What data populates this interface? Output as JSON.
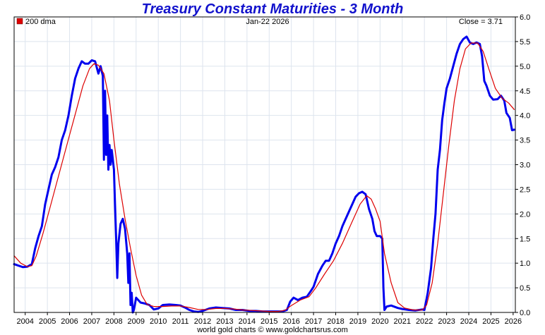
{
  "chart_data": {
    "type": "line",
    "title": "Treasury Constant Maturities - 3 Month",
    "date_label": "Jan-22  2026",
    "close_label": "Close = 3.71",
    "footer": "world gold charts © www.goldchartsrus.com",
    "xlim": [
      2003.5,
      2026.1
    ],
    "ylim": [
      0.0,
      6.0
    ],
    "x_ticks": [
      "2004",
      "2005",
      "2006",
      "2007",
      "2008",
      "2009",
      "2010",
      "2011",
      "2012",
      "2013",
      "2014",
      "2015",
      "2016",
      "2017",
      "2018",
      "2019",
      "2020",
      "2021",
      "2022",
      "2023",
      "2024",
      "2025",
      "2026"
    ],
    "y_ticks": [
      "0.0",
      "0.5",
      "1.0",
      "1.5",
      "2.0",
      "2.5",
      "3.0",
      "3.5",
      "4.0",
      "4.5",
      "5.0",
      "5.5",
      "6.0"
    ],
    "grid": true,
    "legend_position": "top-left",
    "series": [
      {
        "name": "",
        "color": "#0000ee",
        "points": [
          [
            2003.5,
            0.98
          ],
          [
            2003.7,
            0.95
          ],
          [
            2003.9,
            0.92
          ],
          [
            2004.1,
            0.93
          ],
          [
            2004.3,
            0.98
          ],
          [
            2004.45,
            1.3
          ],
          [
            2004.6,
            1.55
          ],
          [
            2004.75,
            1.75
          ],
          [
            2004.9,
            2.2
          ],
          [
            2005.05,
            2.5
          ],
          [
            2005.2,
            2.8
          ],
          [
            2005.35,
            2.95
          ],
          [
            2005.5,
            3.15
          ],
          [
            2005.65,
            3.5
          ],
          [
            2005.8,
            3.7
          ],
          [
            2005.95,
            4.0
          ],
          [
            2006.1,
            4.4
          ],
          [
            2006.25,
            4.75
          ],
          [
            2006.4,
            4.95
          ],
          [
            2006.55,
            5.1
          ],
          [
            2006.7,
            5.05
          ],
          [
            2006.85,
            5.05
          ],
          [
            2007.0,
            5.12
          ],
          [
            2007.15,
            5.1
          ],
          [
            2007.3,
            4.85
          ],
          [
            2007.4,
            5.0
          ],
          [
            2007.5,
            4.8
          ],
          [
            2007.55,
            3.1
          ],
          [
            2007.6,
            4.5
          ],
          [
            2007.65,
            3.2
          ],
          [
            2007.7,
            4.0
          ],
          [
            2007.75,
            2.9
          ],
          [
            2007.8,
            3.4
          ],
          [
            2007.85,
            3.0
          ],
          [
            2007.9,
            3.3
          ],
          [
            2008.0,
            2.9
          ],
          [
            2008.05,
            2.2
          ],
          [
            2008.1,
            1.5
          ],
          [
            2008.15,
            0.7
          ],
          [
            2008.2,
            1.4
          ],
          [
            2008.3,
            1.8
          ],
          [
            2008.4,
            1.9
          ],
          [
            2008.5,
            1.7
          ],
          [
            2008.6,
            1.2
          ],
          [
            2008.65,
            0.6
          ],
          [
            2008.7,
            1.2
          ],
          [
            2008.75,
            0.15
          ],
          [
            2008.8,
            0.4
          ],
          [
            2008.85,
            0.0
          ],
          [
            2008.9,
            0.05
          ],
          [
            2009.0,
            0.3
          ],
          [
            2009.2,
            0.2
          ],
          [
            2009.4,
            0.18
          ],
          [
            2009.6,
            0.15
          ],
          [
            2009.8,
            0.06
          ],
          [
            2010.0,
            0.08
          ],
          [
            2010.2,
            0.15
          ],
          [
            2010.5,
            0.16
          ],
          [
            2010.8,
            0.15
          ],
          [
            2011.0,
            0.14
          ],
          [
            2011.2,
            0.1
          ],
          [
            2011.4,
            0.05
          ],
          [
            2011.6,
            0.02
          ],
          [
            2011.8,
            0.01
          ],
          [
            2012.0,
            0.03
          ],
          [
            2012.3,
            0.08
          ],
          [
            2012.6,
            0.1
          ],
          [
            2012.9,
            0.09
          ],
          [
            2013.2,
            0.08
          ],
          [
            2013.5,
            0.05
          ],
          [
            2013.8,
            0.05
          ],
          [
            2014.1,
            0.03
          ],
          [
            2014.4,
            0.03
          ],
          [
            2014.7,
            0.02
          ],
          [
            2015.0,
            0.02
          ],
          [
            2015.3,
            0.02
          ],
          [
            2015.6,
            0.02
          ],
          [
            2015.8,
            0.05
          ],
          [
            2015.95,
            0.22
          ],
          [
            2016.1,
            0.3
          ],
          [
            2016.3,
            0.25
          ],
          [
            2016.5,
            0.3
          ],
          [
            2016.7,
            0.32
          ],
          [
            2016.9,
            0.45
          ],
          [
            2017.0,
            0.52
          ],
          [
            2017.2,
            0.78
          ],
          [
            2017.4,
            0.95
          ],
          [
            2017.55,
            1.05
          ],
          [
            2017.7,
            1.05
          ],
          [
            2017.85,
            1.2
          ],
          [
            2018.0,
            1.4
          ],
          [
            2018.15,
            1.55
          ],
          [
            2018.3,
            1.75
          ],
          [
            2018.45,
            1.9
          ],
          [
            2018.6,
            2.05
          ],
          [
            2018.75,
            2.2
          ],
          [
            2018.9,
            2.35
          ],
          [
            2019.05,
            2.42
          ],
          [
            2019.2,
            2.45
          ],
          [
            2019.35,
            2.4
          ],
          [
            2019.5,
            2.1
          ],
          [
            2019.65,
            1.9
          ],
          [
            2019.75,
            1.65
          ],
          [
            2019.85,
            1.55
          ],
          [
            2020.0,
            1.55
          ],
          [
            2020.1,
            1.5
          ],
          [
            2020.15,
            0.5
          ],
          [
            2020.2,
            0.05
          ],
          [
            2020.3,
            0.12
          ],
          [
            2020.5,
            0.14
          ],
          [
            2020.8,
            0.09
          ],
          [
            2021.0,
            0.07
          ],
          [
            2021.3,
            0.05
          ],
          [
            2021.6,
            0.04
          ],
          [
            2021.9,
            0.06
          ],
          [
            2022.0,
            0.05
          ],
          [
            2022.15,
            0.4
          ],
          [
            2022.3,
            0.9
          ],
          [
            2022.4,
            1.5
          ],
          [
            2022.5,
            2.0
          ],
          [
            2022.6,
            2.9
          ],
          [
            2022.7,
            3.3
          ],
          [
            2022.8,
            3.9
          ],
          [
            2022.9,
            4.25
          ],
          [
            2023.0,
            4.55
          ],
          [
            2023.15,
            4.75
          ],
          [
            2023.3,
            5.0
          ],
          [
            2023.45,
            5.25
          ],
          [
            2023.6,
            5.45
          ],
          [
            2023.75,
            5.55
          ],
          [
            2023.9,
            5.6
          ],
          [
            2024.05,
            5.48
          ],
          [
            2024.2,
            5.45
          ],
          [
            2024.35,
            5.48
          ],
          [
            2024.5,
            5.45
          ],
          [
            2024.6,
            5.2
          ],
          [
            2024.7,
            4.7
          ],
          [
            2024.8,
            4.6
          ],
          [
            2024.95,
            4.4
          ],
          [
            2025.1,
            4.32
          ],
          [
            2025.3,
            4.33
          ],
          [
            2025.45,
            4.4
          ],
          [
            2025.6,
            4.3
          ],
          [
            2025.7,
            4.05
          ],
          [
            2025.85,
            3.95
          ],
          [
            2025.95,
            3.7
          ],
          [
            2026.05,
            3.71
          ]
        ]
      },
      {
        "name": "200 dma",
        "color": "#dd0000",
        "points": [
          [
            2003.5,
            1.15
          ],
          [
            2003.8,
            1.0
          ],
          [
            2004.1,
            0.93
          ],
          [
            2004.3,
            0.95
          ],
          [
            2004.5,
            1.15
          ],
          [
            2004.8,
            1.6
          ],
          [
            2005.1,
            2.1
          ],
          [
            2005.4,
            2.6
          ],
          [
            2005.7,
            3.1
          ],
          [
            2006.0,
            3.6
          ],
          [
            2006.3,
            4.1
          ],
          [
            2006.6,
            4.6
          ],
          [
            2006.9,
            4.95
          ],
          [
            2007.1,
            5.05
          ],
          [
            2007.3,
            5.02
          ],
          [
            2007.55,
            4.85
          ],
          [
            2007.8,
            4.3
          ],
          [
            2008.0,
            3.5
          ],
          [
            2008.25,
            2.6
          ],
          [
            2008.5,
            1.9
          ],
          [
            2008.75,
            1.3
          ],
          [
            2009.0,
            0.75
          ],
          [
            2009.25,
            0.35
          ],
          [
            2009.5,
            0.16
          ],
          [
            2009.8,
            0.12
          ],
          [
            2010.2,
            0.12
          ],
          [
            2010.6,
            0.13
          ],
          [
            2011.0,
            0.13
          ],
          [
            2011.4,
            0.1
          ],
          [
            2011.8,
            0.06
          ],
          [
            2012.2,
            0.06
          ],
          [
            2012.6,
            0.08
          ],
          [
            2013.0,
            0.08
          ],
          [
            2013.4,
            0.07
          ],
          [
            2013.8,
            0.05
          ],
          [
            2014.2,
            0.04
          ],
          [
            2014.6,
            0.03
          ],
          [
            2015.0,
            0.02
          ],
          [
            2015.4,
            0.02
          ],
          [
            2015.7,
            0.04
          ],
          [
            2016.0,
            0.14
          ],
          [
            2016.4,
            0.25
          ],
          [
            2016.8,
            0.32
          ],
          [
            2017.1,
            0.5
          ],
          [
            2017.5,
            0.78
          ],
          [
            2017.9,
            1.05
          ],
          [
            2018.3,
            1.4
          ],
          [
            2018.7,
            1.8
          ],
          [
            2019.1,
            2.2
          ],
          [
            2019.4,
            2.37
          ],
          [
            2019.6,
            2.3
          ],
          [
            2019.8,
            2.1
          ],
          [
            2020.0,
            1.85
          ],
          [
            2020.2,
            1.2
          ],
          [
            2020.5,
            0.6
          ],
          [
            2020.8,
            0.2
          ],
          [
            2021.1,
            0.09
          ],
          [
            2021.5,
            0.05
          ],
          [
            2021.9,
            0.05
          ],
          [
            2022.1,
            0.15
          ],
          [
            2022.35,
            0.6
          ],
          [
            2022.6,
            1.4
          ],
          [
            2022.85,
            2.4
          ],
          [
            2023.1,
            3.4
          ],
          [
            2023.35,
            4.3
          ],
          [
            2023.6,
            4.95
          ],
          [
            2023.85,
            5.35
          ],
          [
            2024.1,
            5.47
          ],
          [
            2024.4,
            5.47
          ],
          [
            2024.65,
            5.3
          ],
          [
            2024.9,
            4.95
          ],
          [
            2025.2,
            4.55
          ],
          [
            2025.5,
            4.35
          ],
          [
            2025.8,
            4.25
          ],
          [
            2026.05,
            4.12
          ]
        ]
      }
    ]
  }
}
